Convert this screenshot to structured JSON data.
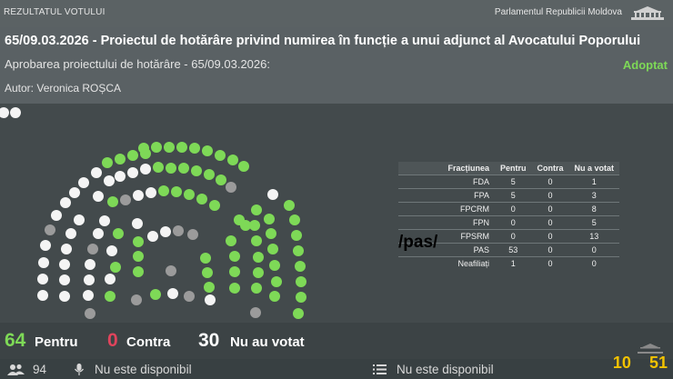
{
  "topbar": {
    "left_label": "REZULTATUL VOTULUI",
    "right_label": "Parlamentul Republicii Moldova",
    "emblem_icon": "parliament-emblem-icon"
  },
  "vote": {
    "title": "65/09.03.2026 - Proiectul de hotărâre privind numirea în funcție a unui adjunct al Avocatului Poporului",
    "subtitle": "Aprobarea proiectului de hotărâre - 65/09.03.2026:",
    "status": "Adoptat",
    "author": "Autor: Veronica ROȘCA"
  },
  "colors": {
    "pentru": "#7ed957",
    "contra": "#e0445c",
    "absent": "#9b9b9b",
    "white_seat": "#f4f4f4",
    "status": "#7ed957",
    "clock": "#f2c200"
  },
  "factions": {
    "headers": [
      "Fracțiunea",
      "Pentru",
      "Contra",
      "Nu a votat"
    ],
    "rows": [
      {
        "name": "FDA",
        "pentru": "5",
        "contra": "0",
        "nu": "1"
      },
      {
        "name": "FPA",
        "pentru": "5",
        "contra": "0",
        "nu": "3"
      },
      {
        "name": "FPCRM",
        "pentru": "0",
        "contra": "0",
        "nu": "8"
      },
      {
        "name": "FPN",
        "pentru": "0",
        "contra": "0",
        "nu": "5"
      },
      {
        "name": "FPSRM",
        "pentru": "0",
        "contra": "0",
        "nu": "13"
      },
      {
        "name": "PAS",
        "pentru": "53",
        "contra": "0",
        "nu": "0"
      },
      {
        "name": "Neafiliați",
        "pentru": "1",
        "contra": "0",
        "nu": "0"
      }
    ],
    "overlay_label": "/pas/"
  },
  "summary": {
    "pentru_count": "64",
    "pentru_label": "Pentru",
    "contra_count": "0",
    "contra_label": "Contra",
    "nu_count": "30",
    "nu_label": "Nu au votat"
  },
  "bottombar": {
    "participants_icon": "people-icon",
    "participants": "94",
    "mic_icon": "microphone-icon",
    "mic_text": "Nu este disponibil",
    "list_icon": "list-icon",
    "list_text": "Nu este disponibil"
  },
  "clock": {
    "hours": "10",
    "minutes": "51"
  }
}
